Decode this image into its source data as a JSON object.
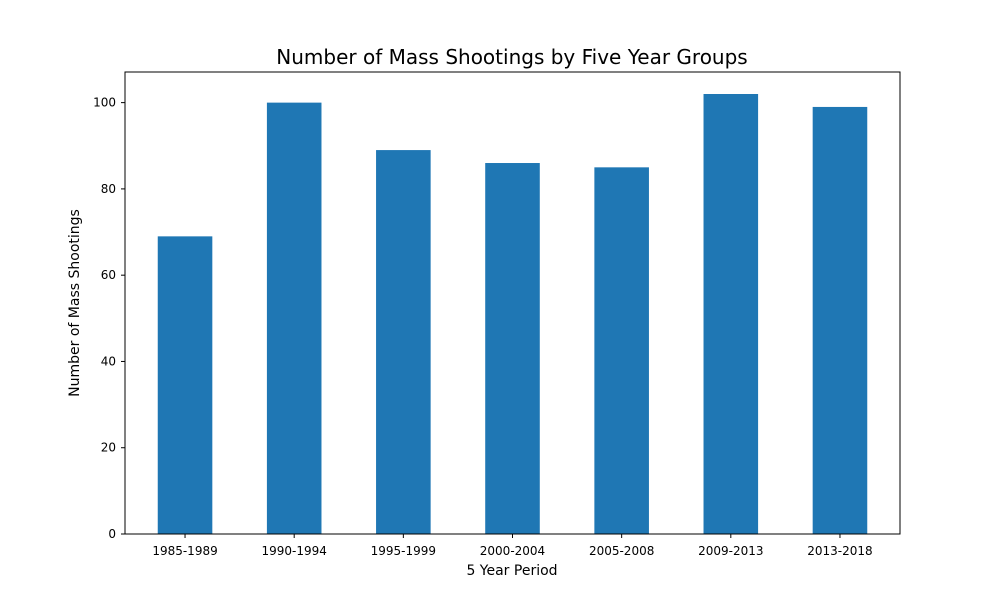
{
  "chart_data": {
    "type": "bar",
    "title": "Number of Mass Shootings by Five Year Groups",
    "xlabel": "5 Year Period",
    "ylabel": "Number of Mass Shootings",
    "categories": [
      "1985-1989",
      "1990-1994",
      "1995-1999",
      "2000-2004",
      "2005-2008",
      "2009-2013",
      "2013-2018"
    ],
    "values": [
      69,
      100,
      89,
      86,
      85,
      102,
      99
    ],
    "ylim": [
      0,
      107.1
    ],
    "yticks": [
      0,
      20,
      40,
      60,
      80,
      100
    ],
    "bar_color": "#1f77b4",
    "grid": false,
    "legend": "none"
  }
}
